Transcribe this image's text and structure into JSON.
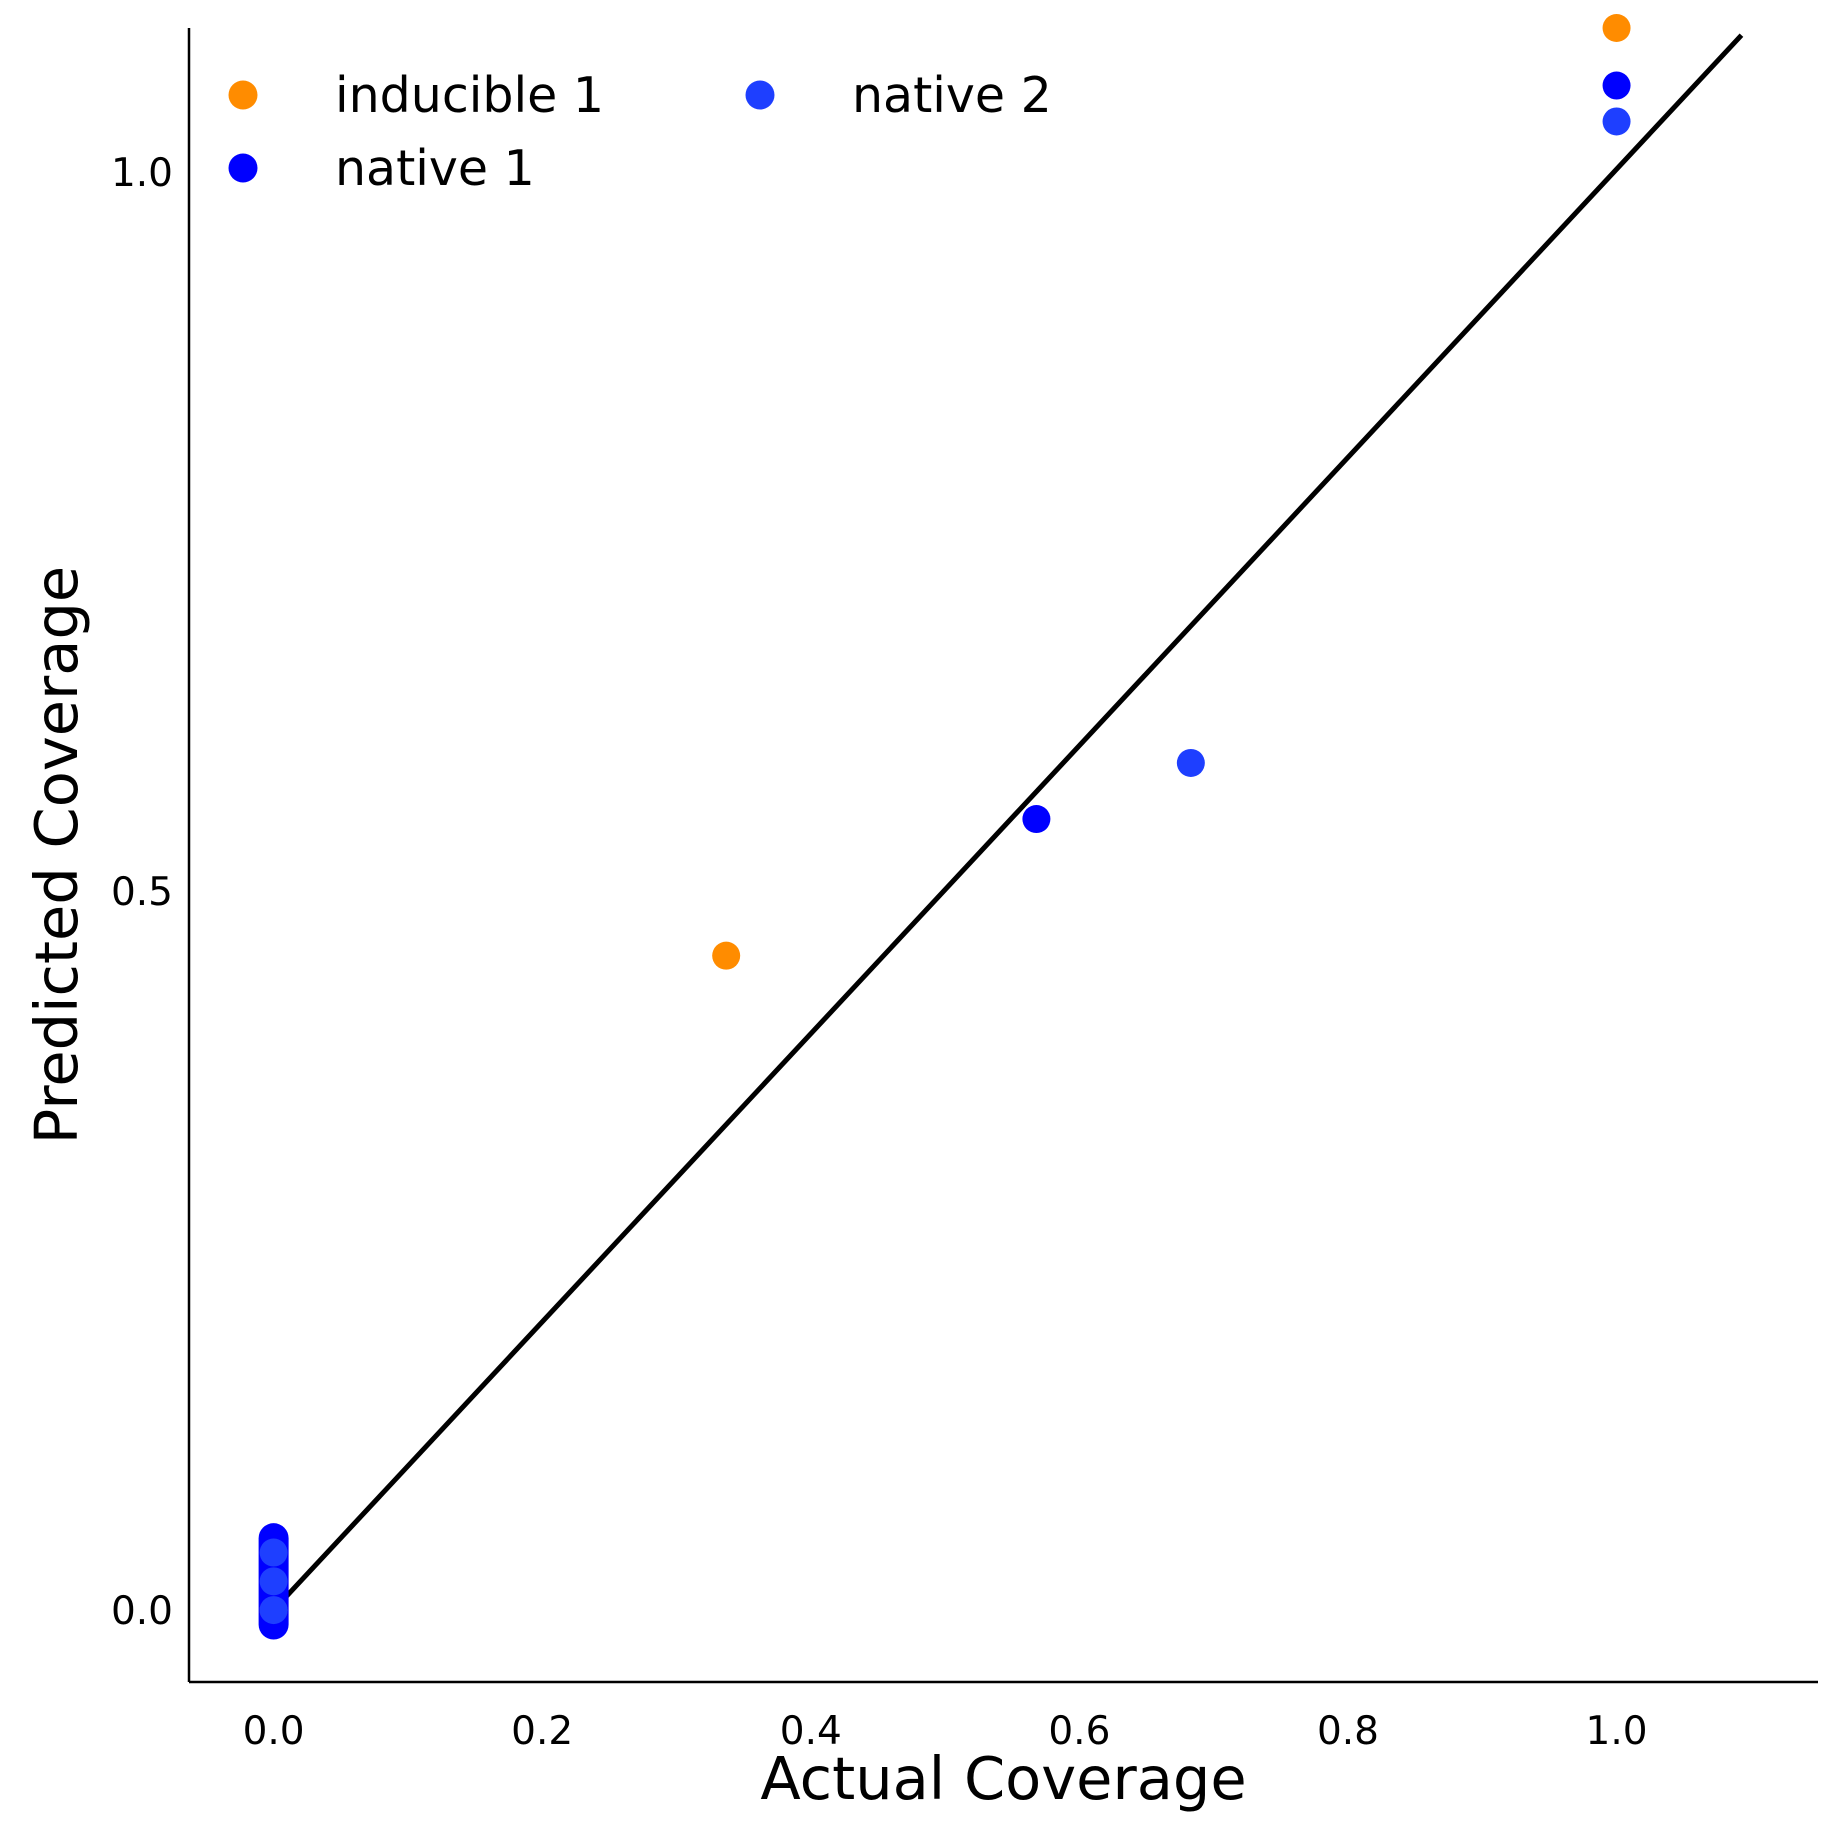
{
  "chart_data": {
    "type": "scatter",
    "title": "",
    "xlabel": "Actual Coverage",
    "ylabel": "Predicted Coverage",
    "xlim": [
      -0.063,
      1.15
    ],
    "ylim": [
      -0.05,
      1.1
    ],
    "x_ticks": [
      {
        "value": 0.0,
        "label": "0.0"
      },
      {
        "value": 0.2,
        "label": "0.2"
      },
      {
        "value": 0.4,
        "label": "0.4"
      },
      {
        "value": 0.6,
        "label": "0.6"
      },
      {
        "value": 0.8,
        "label": "0.8"
      },
      {
        "value": 1.0,
        "label": "1.0"
      }
    ],
    "y_ticks": [
      {
        "value": 0.0,
        "label": "0.0"
      },
      {
        "value": 0.5,
        "label": "0.5"
      },
      {
        "value": 1.0,
        "label": "1.0"
      }
    ],
    "grid": false,
    "legend_position": "top-left",
    "reference_line": {
      "x": [
        0.0,
        1.093
      ],
      "y": [
        0.0,
        1.095
      ],
      "color": "#000000"
    },
    "series": [
      {
        "name": "inducible 1",
        "color": "#FF8C00",
        "points": [
          {
            "x": 0.337,
            "y": 0.455
          },
          {
            "x": 1.0,
            "y": 1.1
          },
          {
            "x": 0.0,
            "y": 0.0
          }
        ]
      },
      {
        "name": "native 1",
        "color": "#0000FF",
        "points": [
          {
            "x": 0.568,
            "y": 0.55
          },
          {
            "x": 1.0,
            "y": 1.06
          },
          {
            "x": 0.0,
            "y": 0.0
          },
          {
            "x": 0.0,
            "y": 0.01
          },
          {
            "x": 0.0,
            "y": 0.02
          },
          {
            "x": 0.0,
            "y": 0.03
          },
          {
            "x": 0.0,
            "y": 0.04
          },
          {
            "x": 0.0,
            "y": 0.05
          },
          {
            "x": 0.0,
            "y": -0.01
          }
        ]
      },
      {
        "name": "native 2",
        "color": "#1E3FFF",
        "points": [
          {
            "x": 0.683,
            "y": 0.589
          },
          {
            "x": 1.0,
            "y": 1.035
          },
          {
            "x": 0.0,
            "y": 0.0
          },
          {
            "x": 0.0,
            "y": 0.02
          },
          {
            "x": 0.0,
            "y": 0.04
          }
        ]
      }
    ],
    "dense_cluster": {
      "x": 0.0,
      "y_from": -0.01,
      "y_to": 0.05,
      "color": "#0000FF"
    }
  }
}
